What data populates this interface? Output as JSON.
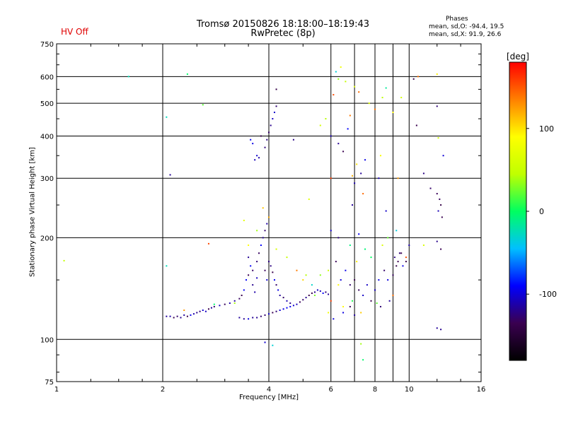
{
  "header": {
    "title_line1": "Tromsø 20150826 18:18:00–18:19:43",
    "title_line2": "RwPretec (8p)",
    "hv_status": "HV Off",
    "phase_heading": "Phases",
    "phase_o_stats": "mean, sd,O: -94.4, 19.5",
    "phase_x_stats": "mean, sd,X:  91.9, 26.6"
  },
  "chart_data": {
    "type": "scatter",
    "title": "Tromsø 20150826 18:18:00–18:19:43",
    "subtitle": "RwPretec (8p)",
    "xlabel": "Frequency [MHz]",
    "ylabel": "Stationary phase Virtual Height [km]",
    "x_scale": "log2",
    "y_scale": "log",
    "xlim": [
      1,
      16
    ],
    "ylim": [
      75,
      750
    ],
    "grid": true,
    "x_ticks": [
      "1",
      "2",
      "4",
      "6",
      "8",
      "10",
      "16"
    ],
    "x_grid": [
      2,
      4,
      6,
      7,
      8,
      9,
      10
    ],
    "y_ticks": [
      "75",
      "100",
      "200",
      "300",
      "400",
      "500",
      "600",
      "750"
    ],
    "y_grid": [
      100,
      200,
      300,
      400,
      500,
      600
    ],
    "colorbar": {
      "label": "[deg]",
      "range": [
        -180,
        180
      ],
      "ticks": [
        "100",
        "0",
        "-100"
      ],
      "tick_values": [
        100,
        0,
        -100
      ],
      "colors": [
        "#000000",
        "#3a0050",
        "#0000ff",
        "#00c0ff",
        "#00ff60",
        "#c0ff00",
        "#ffff00",
        "#ff8000",
        "#ff0000"
      ]
    },
    "series": [
      {
        "values": [
          [
            2.05,
            117
          ],
          [
            2.1,
            117
          ],
          [
            2.15,
            116
          ],
          [
            2.2,
            117
          ],
          [
            2.25,
            116
          ],
          [
            2.3,
            118
          ],
          [
            2.35,
            117
          ],
          [
            2.4,
            118
          ],
          [
            2.45,
            119
          ],
          [
            2.5,
            120
          ],
          [
            2.55,
            121
          ],
          [
            2.6,
            122
          ],
          [
            2.65,
            121
          ],
          [
            2.7,
            123
          ],
          [
            2.75,
            124
          ],
          [
            2.8,
            125
          ],
          [
            2.9,
            126
          ],
          [
            3.0,
            127
          ],
          [
            3.1,
            128
          ],
          [
            3.2,
            130
          ],
          [
            3.3,
            132
          ],
          [
            3.35,
            135
          ],
          [
            3.4,
            140
          ],
          [
            3.45,
            150
          ],
          [
            3.5,
            155
          ],
          [
            3.5,
            175
          ],
          [
            3.55,
            165
          ],
          [
            3.6,
            160
          ],
          [
            3.6,
            145
          ],
          [
            3.65,
            138
          ],
          [
            3.7,
            152
          ],
          [
            3.7,
            170
          ],
          [
            3.75,
            180
          ],
          [
            3.8,
            190
          ],
          [
            3.85,
            200
          ],
          [
            3.9,
            210
          ],
          [
            3.95,
            220
          ],
          [
            4.0,
            230
          ],
          [
            3.9,
            160
          ],
          [
            3.95,
            150
          ],
          [
            4.0,
            170
          ],
          [
            4.05,
            165
          ],
          [
            4.1,
            158
          ],
          [
            4.15,
            150
          ],
          [
            4.2,
            145
          ],
          [
            4.25,
            140
          ],
          [
            4.3,
            135
          ],
          [
            4.4,
            133
          ],
          [
            4.5,
            130
          ],
          [
            4.6,
            128
          ],
          [
            4.7,
            126
          ],
          [
            4.8,
            127
          ],
          [
            4.9,
            129
          ],
          [
            5.0,
            131
          ],
          [
            5.1,
            133
          ],
          [
            5.2,
            135
          ],
          [
            5.3,
            137
          ],
          [
            5.4,
            138
          ],
          [
            5.5,
            140
          ],
          [
            5.6,
            139
          ],
          [
            5.7,
            137
          ],
          [
            5.8,
            138
          ],
          [
            5.9,
            136
          ],
          [
            3.3,
            116
          ],
          [
            3.4,
            115
          ],
          [
            3.5,
            115
          ],
          [
            3.6,
            116
          ],
          [
            3.7,
            116
          ],
          [
            3.8,
            117
          ],
          [
            3.9,
            118
          ],
          [
            4.0,
            119
          ],
          [
            4.1,
            120
          ],
          [
            4.2,
            121
          ],
          [
            4.3,
            122
          ],
          [
            4.4,
            123
          ],
          [
            4.5,
            124
          ],
          [
            4.6,
            125
          ],
          [
            3.6,
            380
          ],
          [
            3.7,
            350
          ],
          [
            3.65,
            340
          ],
          [
            3.75,
            345
          ],
          [
            3.8,
            400
          ],
          [
            3.9,
            370
          ],
          [
            3.95,
            390
          ],
          [
            4.0,
            410
          ],
          [
            4.05,
            430
          ],
          [
            4.1,
            450
          ],
          [
            4.15,
            470
          ],
          [
            4.2,
            490
          ],
          [
            3.55,
            390
          ],
          [
            4.2,
            550
          ],
          [
            4.7,
            390
          ],
          [
            6.0,
            400
          ],
          [
            6.3,
            380
          ],
          [
            6.5,
            360
          ],
          [
            6.7,
            420
          ],
          [
            7.3,
            310
          ],
          [
            7.5,
            340
          ],
          [
            7.0,
            290
          ],
          [
            6.9,
            250
          ],
          [
            6.2,
            170
          ],
          [
            6.4,
            150
          ],
          [
            6.6,
            160
          ],
          [
            6.8,
            145
          ],
          [
            7.0,
            150
          ],
          [
            7.2,
            140
          ],
          [
            7.4,
            135
          ],
          [
            7.6,
            145
          ],
          [
            8.0,
            140
          ],
          [
            8.2,
            150
          ],
          [
            8.5,
            160
          ],
          [
            8.7,
            150
          ],
          [
            9.0,
            155
          ],
          [
            9.2,
            165
          ],
          [
            9.5,
            180
          ],
          [
            9.8,
            170
          ],
          [
            10.0,
            190
          ],
          [
            6.1,
            115
          ],
          [
            6.5,
            120
          ],
          [
            6.8,
            125
          ],
          [
            7.0,
            118
          ],
          [
            7.8,
            130
          ],
          [
            8.3,
            125
          ],
          [
            8.8,
            130
          ],
          [
            10.5,
            430
          ],
          [
            11.0,
            310
          ],
          [
            11.5,
            280
          ],
          [
            12.0,
            490
          ],
          [
            12.5,
            350
          ],
          [
            12.0,
            270
          ],
          [
            12.2,
            260
          ],
          [
            12.3,
            250
          ],
          [
            12.1,
            240
          ],
          [
            12.4,
            230
          ],
          [
            12.0,
            195
          ],
          [
            12.3,
            185
          ],
          [
            12.0,
            108
          ],
          [
            12.3,
            107
          ],
          [
            10.3,
            590
          ],
          [
            3.9,
            98
          ],
          [
            2.1,
            307
          ],
          [
            6.0,
            210
          ],
          [
            6.3,
            200
          ],
          [
            7.2,
            205
          ],
          [
            8.6,
            240
          ],
          [
            8.2,
            300
          ],
          [
            9.4,
            180
          ],
          [
            9.1,
            175
          ],
          [
            9.3,
            170
          ],
          [
            9.6,
            165
          ]
        ]
      },
      {
        "values": [
          [
            1.6,
            600
          ],
          [
            2.05,
            455
          ],
          [
            2.35,
            610
          ],
          [
            2.6,
            495
          ],
          [
            6.2,
            620
          ],
          [
            6.4,
            640
          ],
          [
            6.6,
            580
          ],
          [
            6.3,
            590
          ],
          [
            7.0,
            560
          ],
          [
            7.2,
            540
          ],
          [
            7.7,
            500
          ],
          [
            8.4,
            520
          ],
          [
            8.6,
            555
          ],
          [
            8.0,
            480
          ],
          [
            9.0,
            470
          ],
          [
            9.5,
            520
          ],
          [
            10.6,
            600
          ],
          [
            12.0,
            610
          ],
          [
            12.1,
            395
          ],
          [
            6.1,
            530
          ],
          [
            6.8,
            460
          ],
          [
            5.8,
            450
          ],
          [
            5.6,
            430
          ],
          [
            7.1,
            330
          ],
          [
            6.9,
            305
          ],
          [
            7.4,
            270
          ],
          [
            5.2,
            260
          ],
          [
            6.0,
            300
          ],
          [
            8.3,
            350
          ],
          [
            9.3,
            300
          ],
          [
            1.05,
            171
          ],
          [
            2.05,
            165
          ],
          [
            2.7,
            192
          ],
          [
            3.4,
            225
          ],
          [
            3.5,
            190
          ],
          [
            3.7,
            210
          ],
          [
            3.85,
            245
          ],
          [
            4.0,
            230
          ],
          [
            4.2,
            185
          ],
          [
            4.5,
            175
          ],
          [
            4.8,
            160
          ],
          [
            5.0,
            150
          ],
          [
            5.3,
            145
          ],
          [
            5.6,
            155
          ],
          [
            5.9,
            160
          ],
          [
            6.0,
            130
          ],
          [
            6.3,
            145
          ],
          [
            6.8,
            190
          ],
          [
            7.1,
            170
          ],
          [
            7.5,
            185
          ],
          [
            7.8,
            175
          ],
          [
            8.4,
            190
          ],
          [
            8.7,
            200
          ],
          [
            9.2,
            210
          ],
          [
            9.8,
            175
          ],
          [
            11.0,
            190
          ],
          [
            4.1,
            96
          ],
          [
            7.3,
            97
          ],
          [
            7.4,
            87
          ],
          [
            6.5,
            125
          ],
          [
            6.9,
            130
          ],
          [
            7.3,
            120
          ],
          [
            8.1,
            128
          ],
          [
            9.0,
            135
          ],
          [
            5.9,
            120
          ],
          [
            3.2,
            128
          ],
          [
            2.3,
            122
          ],
          [
            2.8,
            127
          ],
          [
            5.4,
            135
          ],
          [
            5.1,
            155
          ]
        ]
      }
    ]
  }
}
